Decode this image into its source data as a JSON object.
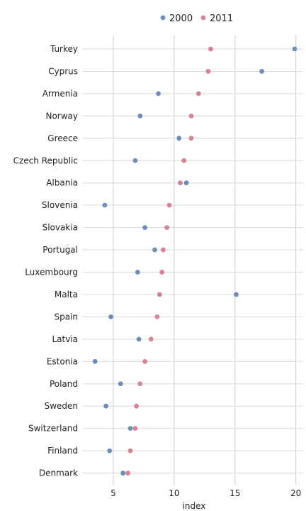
{
  "chart_data": {
    "type": "scatter",
    "xlabel": "index",
    "ylabel": "",
    "title": "",
    "xlim": [
      2.5,
      20.6
    ],
    "xticks": [
      5,
      10,
      15,
      20
    ],
    "grid": true,
    "legend_position": "top",
    "categories": [
      "Turkey",
      "Cyprus",
      "Armenia",
      "Norway",
      "Greece",
      "Czech Republic",
      "Albania",
      "Slovenia",
      "Slovakia",
      "Portugal",
      "Luxembourg",
      "Malta",
      "Spain",
      "Latvia",
      "Estonia",
      "Poland",
      "Sweden",
      "Switzerland",
      "Finland",
      "Denmark"
    ],
    "series": [
      {
        "name": "2000",
        "color": "#6b8fb8",
        "values": [
          19.9,
          17.2,
          8.7,
          7.2,
          10.4,
          6.8,
          11.0,
          4.3,
          7.6,
          8.4,
          7.0,
          15.1,
          4.8,
          7.1,
          3.5,
          5.6,
          4.4,
          6.4,
          4.7,
          5.8
        ]
      },
      {
        "name": "2011",
        "color": "#d98294",
        "values": [
          13.0,
          12.8,
          12.0,
          11.4,
          11.4,
          10.8,
          10.5,
          9.6,
          9.4,
          9.1,
          9.0,
          8.8,
          8.6,
          8.1,
          7.6,
          7.2,
          6.9,
          6.8,
          6.4,
          6.2
        ]
      }
    ]
  }
}
